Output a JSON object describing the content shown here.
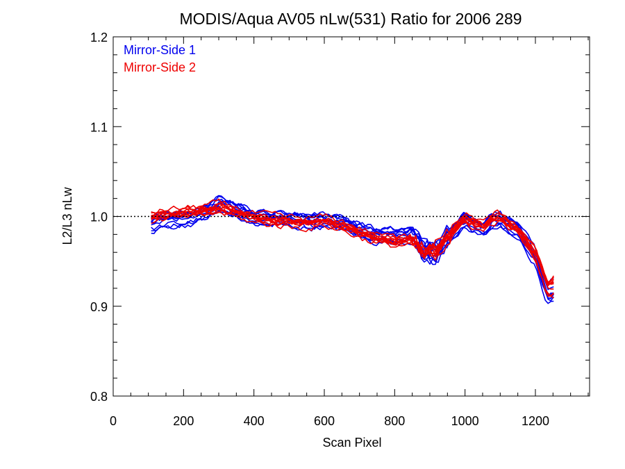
{
  "chart_data": {
    "type": "line",
    "title": "MODIS/Aqua AV05 nLw(531) Ratio for 2006 289",
    "xlabel": "Scan Pixel",
    "ylabel": "L2/L3 nLw",
    "xlim": [
      0,
      1354
    ],
    "ylim": [
      0.8,
      1.2
    ],
    "xticks": [
      "0",
      "200",
      "400",
      "600",
      "800",
      "1000",
      "1200"
    ],
    "yticks": [
      "0.8",
      "0.9",
      "1.0",
      "1.1",
      "1.2"
    ],
    "reference_line": 1.0,
    "legend_position": "top-left",
    "colors": {
      "mirror_side_1": "#0000ee",
      "mirror_side_2": "#ee0000",
      "axes": "#000000"
    },
    "legend": [
      {
        "label": "Mirror-Side 1",
        "color": "#0000ee"
      },
      {
        "label": "Mirror-Side 2",
        "color": "#ee0000"
      }
    ],
    "x": [
      108,
      150,
      200,
      250,
      300,
      350,
      400,
      450,
      500,
      550,
      600,
      650,
      700,
      750,
      800,
      850,
      880,
      920,
      950,
      1000,
      1050,
      1080,
      1100,
      1150,
      1200,
      1235,
      1255
    ],
    "series": [
      {
        "name": "Mirror-Side 1",
        "color": "#0000ee",
        "curve_count": 10,
        "values": [
          0.99,
          0.995,
          0.997,
          1.002,
          1.012,
          1.008,
          0.998,
          0.997,
          0.996,
          0.994,
          0.996,
          0.992,
          0.985,
          0.978,
          0.978,
          0.98,
          0.962,
          0.958,
          0.975,
          0.996,
          0.985,
          0.995,
          0.996,
          0.984,
          0.955,
          0.915,
          0.918
        ]
      },
      {
        "name": "Mirror-Side 2",
        "color": "#ee0000",
        "curve_count": 10,
        "values": [
          1.0,
          1.002,
          1.004,
          1.006,
          1.01,
          1.005,
          0.998,
          0.996,
          0.994,
          0.992,
          0.995,
          0.99,
          0.982,
          0.975,
          0.972,
          0.975,
          0.96,
          0.962,
          0.978,
          0.998,
          0.988,
          0.998,
          0.999,
          0.985,
          0.958,
          0.92,
          0.922
        ]
      }
    ]
  }
}
